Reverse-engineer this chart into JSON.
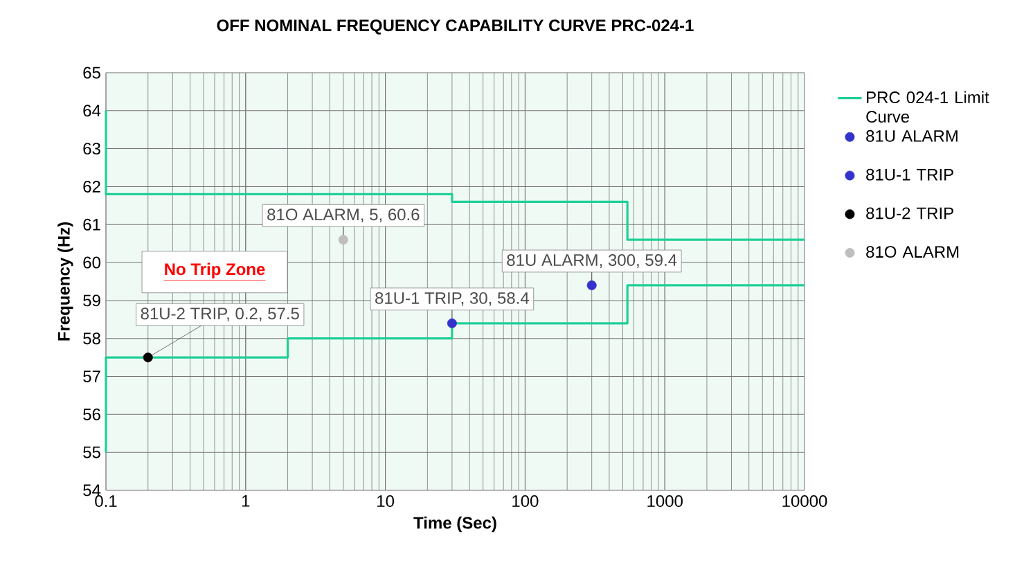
{
  "chart_data": {
    "type": "line",
    "title": "OFF NOMINAL FREQUENCY CAPABILITY CURVE PRC-024-1",
    "xlabel": "Time (Sec)",
    "ylabel": "Frequency (Hz)",
    "annotations": [
      "No Trip Zone"
    ],
    "series": [
      {
        "name": "PRC 024-1 Limit Curve",
        "color": "#1fcf97",
        "marker": "none",
        "x": [
          0.1,
          0.1,
          30,
          30,
          540,
          540,
          10000,
          null,
          0.1,
          0.1,
          2,
          2,
          30,
          30,
          540,
          540,
          10000
        ],
        "values": [
          64,
          61.8,
          61.8,
          61.6,
          61.6,
          60.6,
          60.6,
          null,
          55,
          57.5,
          57.5,
          58,
          58,
          58.4,
          58.4,
          59.4,
          59.4
        ]
      },
      {
        "name": "81U ALARM",
        "color": "#3333cc",
        "type": "scatter",
        "marker": "circle",
        "x": [
          300
        ],
        "values": [
          59.4
        ],
        "value_labels": [
          "81U ALARM, 300, 59.4"
        ]
      },
      {
        "name": "81U-1 TRIP",
        "color": "#3333cc",
        "type": "scatter",
        "marker": "circle",
        "x": [
          30
        ],
        "values": [
          58.4
        ],
        "value_labels": [
          "81U-1 TRIP, 30, 58.4"
        ]
      },
      {
        "name": "81U-2 TRIP",
        "color": "#000000",
        "type": "scatter",
        "marker": "circle",
        "x": [
          0.2
        ],
        "values": [
          57.5
        ],
        "value_labels": [
          "81U-2 TRIP, 0.2, 57.5"
        ]
      },
      {
        "name": "81O ALARM",
        "color": "#bfbfbf",
        "type": "scatter",
        "marker": "circle",
        "x": [
          5
        ],
        "values": [
          60.6
        ],
        "value_labels": [
          "81O ALARM, 5, 60.6"
        ]
      }
    ],
    "log": "x",
    "xlim": [
      0.1,
      10000
    ],
    "xticks": [
      0.1,
      1,
      10,
      100,
      1000,
      10000
    ],
    "ylim": [
      54,
      65
    ],
    "yticks": [
      54,
      55,
      56,
      57,
      58,
      59,
      60,
      61,
      62,
      63,
      64,
      65
    ],
    "grid": true,
    "legend": "right"
  }
}
